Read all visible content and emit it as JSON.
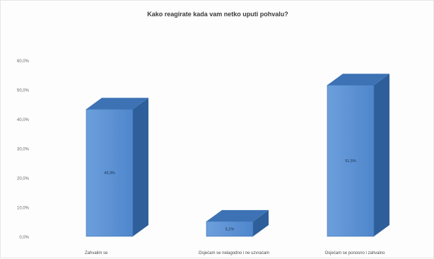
{
  "chart_data": {
    "type": "bar",
    "title": "Kako reagirate kada vam netko uputi pohvalu?",
    "categories": [
      "Zahvalim se",
      "Osjećam se nelagodno i ne uzvraćam",
      "Osjećam se ponosno i zahvalno"
    ],
    "values": [
      43.3,
      5.1,
      51.5
    ],
    "value_labels": [
      "43,3%",
      "5,1%",
      "51,5%"
    ],
    "ylim": [
      0,
      60
    ],
    "yticks": [
      0,
      10,
      20,
      30,
      40,
      50,
      60
    ],
    "ytick_labels": [
      "0,0%",
      "10,0%",
      "20,0%",
      "30,0%",
      "40,0%",
      "50,0%",
      "60,0%"
    ],
    "grid": false,
    "style": "3d-column",
    "colors": {
      "front": "#4f86cc",
      "front_light": "#6c9fdc",
      "side": "#2f5f9a",
      "top": "#3d72b4"
    }
  }
}
